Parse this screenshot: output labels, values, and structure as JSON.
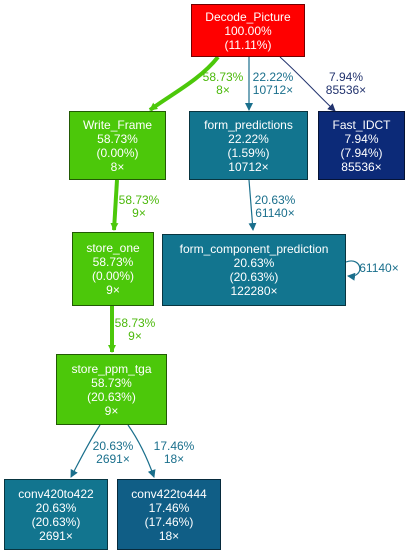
{
  "colors": {
    "red": "#ff0000",
    "green": "#4cc80a",
    "teal": "#12758f",
    "teal_dark": "#105e86",
    "navy": "#0c2a78",
    "green_text": "#4cb90c",
    "teal_text": "#1a6f8c",
    "navy_text": "#22336e"
  },
  "nodes": {
    "decode_picture": {
      "name": "Decode_Picture",
      "total": "100.00%",
      "self": "(11.11%)"
    },
    "write_frame": {
      "name": "Write_Frame",
      "total": "58.73%",
      "self": "(0.00%)",
      "calls": "8×"
    },
    "form_predictions": {
      "name": "form_predictions",
      "total": "22.22%",
      "self": "(1.59%)",
      "calls": "10712×"
    },
    "fast_idct": {
      "name": "Fast_IDCT",
      "total": "7.94%",
      "self": "(7.94%)",
      "calls": "85536×"
    },
    "store_one": {
      "name": "store_one",
      "total": "58.73%",
      "self": "(0.00%)",
      "calls": "9×"
    },
    "form_component_prediction": {
      "name": "form_component_prediction",
      "total": "20.63%",
      "self": "(20.63%)",
      "calls": "122280×"
    },
    "store_ppm_tga": {
      "name": "store_ppm_tga",
      "total": "58.73%",
      "self": "(20.63%)",
      "calls": "9×"
    },
    "conv420to422": {
      "name": "conv420to422",
      "total": "20.63%",
      "self": "(20.63%)",
      "calls": "2691×"
    },
    "conv422to444": {
      "name": "conv422to444",
      "total": "17.46%",
      "self": "(17.46%)",
      "calls": "18×"
    }
  },
  "edges": {
    "dp_wf": {
      "pct": "58.73%",
      "calls": "8×"
    },
    "dp_fp": {
      "pct": "22.22%",
      "calls": "10712×"
    },
    "dp_fi": {
      "pct": "7.94%",
      "calls": "85536×"
    },
    "wf_so": {
      "pct": "58.73%",
      "calls": "9×"
    },
    "fp_fcp": {
      "pct": "20.63%",
      "calls": "61140×"
    },
    "fcp_self": {
      "calls": "61140×"
    },
    "so_spt": {
      "pct": "58.73%",
      "calls": "9×"
    },
    "spt_c420": {
      "pct": "20.63%",
      "calls": "2691×"
    },
    "spt_c422": {
      "pct": "17.46%",
      "calls": "18×"
    }
  }
}
